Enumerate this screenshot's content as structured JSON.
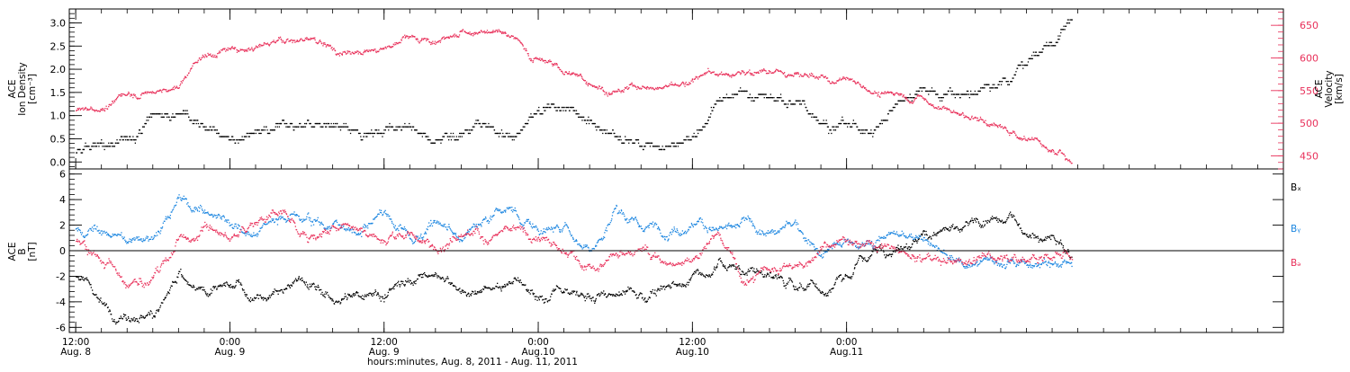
{
  "chart_data": [
    {
      "type": "scatter",
      "panel": "top",
      "left_axis": {
        "label_lines": [
          "ACE",
          "Ion Density",
          "[cm⁻³]"
        ],
        "ylim": [
          -0.15,
          3.3
        ],
        "ticks": [
          "0.0",
          "0.5",
          "1.0",
          "1.5",
          "2.0",
          "2.5",
          "3.0"
        ],
        "tick_values": [
          0.0,
          0.5,
          1.0,
          1.5,
          2.0,
          2.5,
          3.0
        ],
        "color": "#000000"
      },
      "right_axis": {
        "label_lines": [
          "ACE",
          "Velocity",
          "[km/s]"
        ],
        "ylim": [
          430,
          675
        ],
        "ticks": [
          "450",
          "500",
          "550",
          "600",
          "650"
        ],
        "tick_values": [
          450,
          500,
          550,
          600,
          650
        ],
        "color": "#e8305a"
      },
      "series": [
        {
          "axis": "left",
          "color": "#000000",
          "knots_hours": [
            0,
            4,
            6,
            8,
            10,
            12,
            14,
            16,
            18,
            20,
            24,
            26,
            28,
            30,
            32,
            34,
            36,
            38,
            40,
            42,
            44,
            46,
            48,
            50,
            52,
            54,
            56,
            58,
            60,
            62,
            64,
            66,
            68,
            70,
            72,
            74,
            76,
            77.5
          ],
          "knots_values": [
            0.2,
            0.5,
            1.1,
            1.15,
            0.9,
            0.65,
            0.6,
            0.7,
            0.85,
            0.8,
            0.6,
            0.7,
            0.5,
            0.6,
            0.85,
            0.5,
            1.1,
            1.3,
            0.9,
            0.6,
            0.3,
            0.35,
            0.6,
            1.3,
            1.6,
            1.4,
            1.2,
            1.0,
            0.8,
            0.65,
            1.3,
            1.55,
            1.5,
            1.45,
            1.6,
            2.1,
            2.6,
            3.0
          ]
        },
        {
          "axis": "right",
          "color": "#e8305a",
          "knots_hours": [
            0,
            2,
            4,
            6,
            8,
            9,
            10,
            12,
            14,
            16,
            18,
            20,
            22,
            24,
            26,
            28,
            30,
            32,
            34,
            36,
            38,
            40,
            42,
            44,
            46,
            48,
            50,
            52,
            54,
            56,
            58,
            60,
            62,
            64,
            66,
            68,
            70,
            72,
            74,
            77.5
          ],
          "knots_values": [
            520,
            525,
            550,
            545,
            555,
            585,
            600,
            612,
            615,
            630,
            625,
            618,
            610,
            615,
            630,
            622,
            640,
            645,
            630,
            600,
            580,
            565,
            550,
            555,
            560,
            570,
            580,
            575,
            580,
            575,
            565,
            560,
            550,
            543,
            537,
            520,
            505,
            495,
            480,
            445
          ]
        }
      ]
    },
    {
      "type": "scatter",
      "panel": "bottom",
      "left_axis": {
        "label_lines": [
          "ACE",
          "B",
          "[nT]"
        ],
        "ylim": [
          -6.4,
          6.4
        ],
        "ticks": [
          "-6",
          "-4",
          "-2",
          "0",
          "2",
          "4",
          "6"
        ],
        "tick_values": [
          -6,
          -4,
          -2,
          0,
          2,
          4,
          6
        ]
      },
      "zero_line": 0,
      "series": [
        {
          "name": "Bₓ",
          "color": "#000000",
          "knots_hours": [
            0,
            2,
            4,
            6,
            8,
            10,
            12,
            14,
            16,
            18,
            20,
            22,
            24,
            26,
            28,
            30,
            32,
            34,
            36,
            38,
            40,
            42,
            44,
            46,
            48,
            50,
            52,
            54,
            56,
            58,
            60,
            62,
            64,
            66,
            68,
            70,
            72,
            74,
            76,
            77.5
          ],
          "knots_values": [
            -2.0,
            -4.0,
            -5.0,
            -5.0,
            -2.0,
            -3.5,
            -3.0,
            -3.5,
            -3.5,
            -2.0,
            -4.0,
            -3.5,
            -3.0,
            -2.5,
            -2.0,
            -2.5,
            -3.0,
            -2.0,
            -3.5,
            -3.0,
            -4.0,
            -3.5,
            -3.5,
            -3.0,
            -2.0,
            -1.0,
            -1.5,
            -2.0,
            -2.5,
            -3.0,
            -2.0,
            0.0,
            0.5,
            1.0,
            1.5,
            1.8,
            2.0,
            1.5,
            1.0,
            -1.0
          ]
        },
        {
          "name": "Bᵧ",
          "color": "#1c86e0",
          "knots_hours": [
            0,
            2,
            4,
            6,
            8,
            10,
            12,
            14,
            16,
            18,
            20,
            22,
            24,
            26,
            28,
            30,
            32,
            34,
            36,
            38,
            40,
            42,
            44,
            46,
            48,
            50,
            52,
            54,
            56,
            58,
            60,
            62,
            64,
            66,
            68,
            70,
            72,
            74,
            76,
            77.5
          ],
          "knots_values": [
            2.0,
            1.5,
            1.0,
            1.0,
            4.0,
            3.0,
            2.5,
            1.5,
            3.0,
            3.0,
            2.0,
            1.0,
            3.0,
            1.0,
            2.0,
            1.0,
            3.0,
            3.0,
            1.5,
            2.0,
            0.0,
            3.0,
            2.0,
            1.5,
            2.5,
            1.5,
            2.0,
            1.0,
            2.0,
            0.0,
            0.5,
            0.5,
            1.5,
            1.0,
            -0.5,
            -1.0,
            -1.0,
            -0.5,
            -1.0,
            -0.5
          ]
        },
        {
          "name": "Bₔ",
          "color": "#e8305a",
          "knots_hours": [
            0,
            2,
            4,
            6,
            8,
            10,
            12,
            14,
            16,
            18,
            20,
            22,
            24,
            26,
            28,
            30,
            32,
            34,
            36,
            38,
            40,
            42,
            44,
            46,
            48,
            50,
            52,
            54,
            56,
            58,
            60,
            62,
            64,
            66,
            68,
            70,
            72,
            74,
            76,
            77.5
          ],
          "knots_values": [
            1.0,
            -0.5,
            -3.0,
            -2.0,
            1.0,
            2.0,
            1.0,
            2.5,
            3.0,
            1.0,
            1.5,
            2.0,
            1.0,
            1.5,
            0.0,
            2.0,
            1.0,
            1.5,
            1.0,
            0.0,
            -1.0,
            -0.5,
            0.0,
            -1.0,
            -0.5,
            1.0,
            -2.0,
            -1.5,
            -1.0,
            0.0,
            1.0,
            0.5,
            0.0,
            -0.5,
            -0.5,
            -0.5,
            -0.5,
            -0.5,
            -0.5,
            0.0
          ]
        }
      ]
    }
  ],
  "xaxis": {
    "caption": "hours:minutes, Aug.  8, 2011 - Aug. 11, 2011",
    "range_hours": [
      -0.5,
      94
    ],
    "major_ticks": [
      {
        "hour": 0,
        "time": "12:00",
        "date": "Aug. 8"
      },
      {
        "hour": 12,
        "time": "0:00",
        "date": "Aug. 9"
      },
      {
        "hour": 24,
        "time": "12:00",
        "date": "Aug. 9"
      },
      {
        "hour": 36,
        "time": "0:00",
        "date": "Aug.10"
      },
      {
        "hour": 48,
        "time": "12:00",
        "date": "Aug.10"
      },
      {
        "hour": 60,
        "time": "0:00",
        "date": "Aug.11"
      }
    ]
  }
}
